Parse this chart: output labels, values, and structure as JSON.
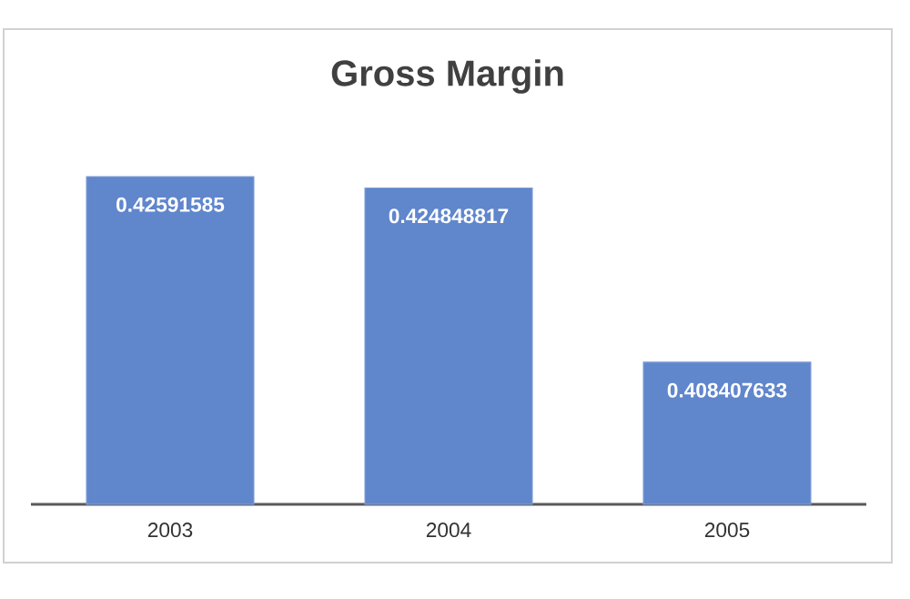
{
  "chart_data": {
    "type": "bar",
    "title": "Gross Margin",
    "categories": [
      "2003",
      "2004",
      "2005"
    ],
    "values": [
      0.42591585,
      0.424848817,
      0.408407633
    ],
    "color": "#6086cc",
    "ylim": [
      0.395,
      0.42591585
    ],
    "data_labels": true
  }
}
